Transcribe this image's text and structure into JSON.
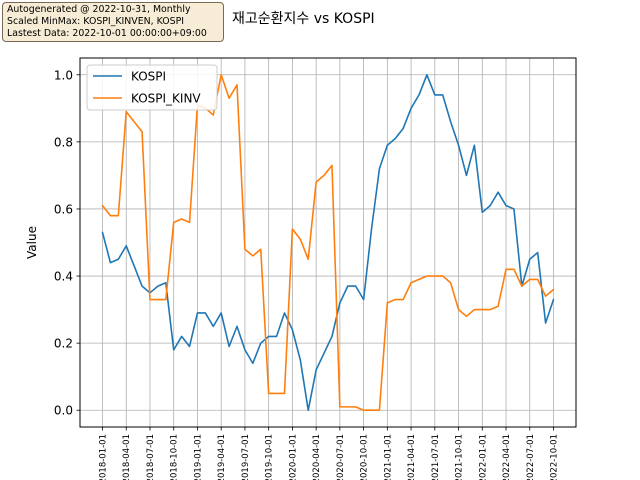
{
  "note": {
    "line1": "Autogenerated @ 2022-10-31, Monthly",
    "line2": "Scaled MinMax: KOSPI_KINVEN, KOSPI",
    "line3": "Lastest Data: 2022-10-01 00:00:00+09:00"
  },
  "chart_data": {
    "type": "line",
    "title": "재고순환지수 vs KOSPI",
    "xlabel": "",
    "ylabel": "Value",
    "ylim": [
      -0.05,
      1.05
    ],
    "yticks": [
      0.0,
      0.2,
      0.4,
      0.6,
      0.8,
      1.0
    ],
    "xtick_labels": [
      "2018-01-01",
      "2018-04-01",
      "2018-07-01",
      "2018-10-01",
      "2019-01-01",
      "2019-04-01",
      "2019-07-01",
      "2019-10-01",
      "2020-01-01",
      "2020-04-01",
      "2020-07-01",
      "2020-10-01",
      "2021-01-01",
      "2021-04-01",
      "2021-07-01",
      "2021-10-01",
      "2022-01-01",
      "2022-04-01",
      "2022-07-01",
      "2022-10-01"
    ],
    "grid": true,
    "legend_position": "top-left",
    "colors": {
      "KOSPI": "#1f77b4",
      "KOSPI_KINV": "#ff7f0e"
    },
    "series": [
      {
        "name": "KOSPI",
        "values": [
          0.53,
          0.44,
          0.45,
          0.49,
          0.43,
          0.37,
          0.35,
          0.37,
          0.38,
          0.18,
          0.22,
          0.19,
          0.29,
          0.29,
          0.25,
          0.29,
          0.19,
          0.25,
          0.18,
          0.14,
          0.2,
          0.22,
          0.22,
          0.29,
          0.24,
          0.15,
          0.0,
          0.12,
          0.17,
          0.22,
          0.32,
          0.37,
          0.37,
          0.33,
          0.54,
          0.72,
          0.79,
          0.81,
          0.84,
          0.9,
          0.94,
          1.0,
          0.94,
          0.94,
          0.86,
          0.79,
          0.7,
          0.79,
          0.59,
          0.61,
          0.65,
          0.61,
          0.6,
          0.37,
          0.45,
          0.47,
          0.26,
          0.33
        ]
      },
      {
        "name": "KOSPI_KINV",
        "values": [
          0.61,
          0.58,
          0.58,
          0.89,
          0.86,
          0.83,
          0.33,
          0.33,
          0.33,
          0.56,
          0.57,
          0.56,
          0.91,
          0.9,
          0.88,
          1.0,
          0.93,
          0.97,
          0.48,
          0.46,
          0.48,
          0.05,
          0.05,
          0.05,
          0.54,
          0.51,
          0.45,
          0.68,
          0.7,
          0.73,
          0.01,
          0.01,
          0.01,
          0.0,
          0.0,
          0.0,
          0.32,
          0.33,
          0.33,
          0.38,
          0.39,
          0.4,
          0.4,
          0.4,
          0.38,
          0.3,
          0.28,
          0.3,
          0.3,
          0.3,
          0.31,
          0.42,
          0.42,
          0.37,
          0.39,
          0.39,
          0.34,
          0.36
        ]
      }
    ]
  }
}
